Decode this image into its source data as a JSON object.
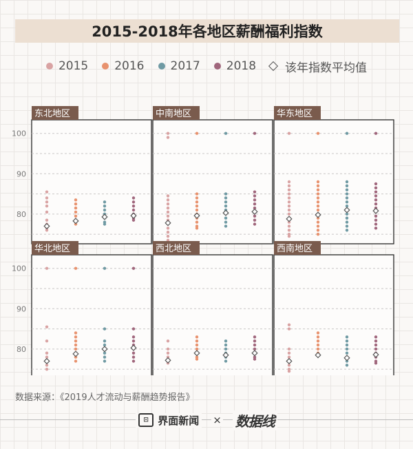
{
  "title": "2015-2018年各地区薪酬福利指数",
  "legend": {
    "items": [
      {
        "label": "2015",
        "color": "#d9a3a3"
      },
      {
        "label": "2016",
        "color": "#e8926e"
      },
      {
        "label": "2017",
        "color": "#6f9aa3"
      },
      {
        "label": "2018",
        "color": "#a0667c"
      }
    ],
    "avg_label": "该年指数平均值"
  },
  "source": "数据来源：《2019人才流动与薪酬趋势报告》",
  "footer": {
    "brand1": "界面新闻",
    "times": "×",
    "brand2": "数据线"
  },
  "chart_data": {
    "type": "scatter",
    "y_ticks": [
      100,
      90,
      80
    ],
    "ylim": [
      74,
      102
    ],
    "grid": "dashed horizontal",
    "panels": [
      {
        "name": "东北地区",
        "years": [
          {
            "year": "2015",
            "values": [
              85.5,
              84,
              83,
              82,
              80.5,
              78.5,
              77.5,
              76.5,
              76
            ],
            "avg": 77
          },
          {
            "year": "2016",
            "values": [
              83.5,
              82.5,
              81.5,
              80.5,
              79.5,
              78.5,
              77.5
            ],
            "avg": 78.3
          },
          {
            "year": "2017",
            "values": [
              83,
              82,
              81,
              80,
              79,
              78,
              77.5
            ],
            "avg": 79.3
          },
          {
            "year": "2018",
            "values": [
              84,
              83,
              82,
              81,
              80,
              79,
              78.5
            ],
            "avg": 79.6
          }
        ]
      },
      {
        "name": "中南地区",
        "years": [
          {
            "year": "2015",
            "values": [
              100,
              99,
              84.5,
              83.5,
              82.5,
              81.5,
              80.5,
              79.5,
              78.5,
              77.5,
              76.5,
              75.5,
              74.5,
              73.5
            ],
            "avg": 77.8
          },
          {
            "year": "2016",
            "values": [
              100,
              85,
              84,
              83,
              82,
              81,
              80,
              79,
              78,
              77,
              76.5
            ],
            "avg": 79.6
          },
          {
            "year": "2017",
            "values": [
              100,
              85,
              84,
              83,
              82,
              81,
              80,
              79,
              78,
              77
            ],
            "avg": 80.3
          },
          {
            "year": "2018",
            "values": [
              100,
              85.5,
              84.5,
              83.5,
              82.5,
              81.5,
              80.5,
              79.5,
              78.5,
              77.5
            ],
            "avg": 80.6
          }
        ]
      },
      {
        "name": "华东地区",
        "years": [
          {
            "year": "2015",
            "values": [
              100,
              88,
              87,
              86,
              85,
              84,
              83,
              82,
              81,
              80,
              79,
              78,
              77,
              76,
              75,
              74.5
            ],
            "avg": 78.8
          },
          {
            "year": "2016",
            "values": [
              100,
              88,
              87,
              86,
              85,
              84,
              83,
              82,
              81,
              80,
              79,
              78,
              77,
              76,
              75
            ],
            "avg": 79.8
          },
          {
            "year": "2017",
            "values": [
              100,
              88,
              87,
              86,
              85,
              84,
              83,
              82,
              81,
              80,
              79,
              78,
              77,
              76
            ],
            "avg": 81
          },
          {
            "year": "2018",
            "values": [
              100,
              87.5,
              86.5,
              85.5,
              84.5,
              83.5,
              82.5,
              81.5,
              80.5,
              79.5,
              78.5,
              77.5,
              76.5
            ],
            "avg": 80.8
          }
        ]
      },
      {
        "name": "华北地区",
        "years": [
          {
            "year": "2015",
            "values": [
              100,
              85.5,
              82,
              79,
              78,
              77,
              76,
              75
            ],
            "avg": 77
          },
          {
            "year": "2016",
            "values": [
              100,
              84,
              83,
              82,
              81,
              80,
              79,
              78,
              77
            ],
            "avg": 78.8
          },
          {
            "year": "2017",
            "values": [
              100,
              85,
              82,
              81,
              80,
              79,
              78,
              77
            ],
            "avg": 80
          },
          {
            "year": "2018",
            "values": [
              100,
              85,
              83,
              82,
              81,
              80,
              79,
              78,
              77
            ],
            "avg": 80.3
          }
        ]
      },
      {
        "name": "西北地区",
        "years": [
          {
            "year": "2015",
            "values": [
              82,
              80,
              79,
              78,
              77,
              76.5
            ],
            "avg": 77.2
          },
          {
            "year": "2016",
            "values": [
              83,
              82,
              81,
              80,
              79,
              78,
              77.5
            ],
            "avg": 79
          },
          {
            "year": "2017",
            "values": [
              82,
              81,
              80,
              79,
              78,
              77
            ],
            "avg": 78.5
          },
          {
            "year": "2018",
            "values": [
              83,
              82,
              81,
              80,
              79,
              78,
              77.5
            ],
            "avg": 79
          }
        ]
      },
      {
        "name": "西南地区",
        "years": [
          {
            "year": "2015",
            "values": [
              86,
              85,
              80,
              79,
              78,
              77,
              76,
              75,
              74.5
            ],
            "avg": 77
          },
          {
            "year": "2016",
            "values": [
              84,
              83,
              82,
              81,
              80,
              79,
              78.5
            ],
            "avg": 78.5
          },
          {
            "year": "2017",
            "values": [
              83,
              82,
              81,
              80,
              79,
              78,
              77,
              76
            ],
            "avg": 77.8
          },
          {
            "year": "2018",
            "values": [
              83,
              82,
              81,
              80,
              79,
              78,
              77,
              76.5
            ],
            "avg": 78.6
          }
        ]
      }
    ]
  }
}
